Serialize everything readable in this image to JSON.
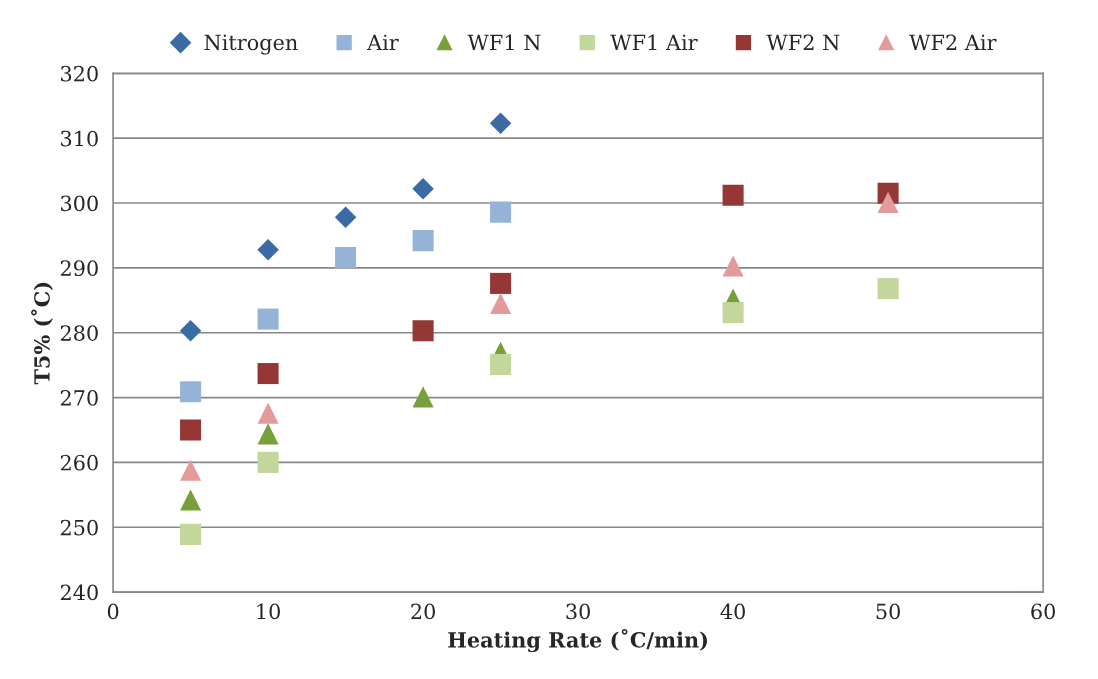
{
  "chart_data": {
    "type": "scatter",
    "xlabel": "Heating Rate (˚C/min)",
    "ylabel": "T5% (˚C)",
    "xlim": [
      0,
      60
    ],
    "xticks": [
      0,
      10,
      20,
      30,
      40,
      50,
      60
    ],
    "ylim": [
      240,
      320
    ],
    "yticks": [
      240,
      250,
      260,
      270,
      280,
      290,
      300,
      310,
      320
    ],
    "grid": "y",
    "legend": "top",
    "series": [
      {
        "name": "Nitrogen",
        "color": "#3a6ba5",
        "marker": "diamond",
        "x": [
          5,
          10,
          15,
          20,
          25
        ],
        "values": [
          280.3,
          292.8,
          297.8,
          302.2,
          312.3
        ]
      },
      {
        "name": "Air",
        "color": "#95b3d7",
        "marker": "square",
        "x": [
          5,
          10,
          15,
          20,
          25
        ],
        "values": [
          270.9,
          282.1,
          291.6,
          294.2,
          298.6
        ]
      },
      {
        "name": "WF1 N",
        "color": "#77a03a",
        "marker": "triangle",
        "x": [
          5,
          10,
          20,
          25,
          40
        ],
        "values": [
          254.2,
          264.4,
          270.1,
          277.0,
          285.2
        ]
      },
      {
        "name": "WF1 Air",
        "color": "#c3d69b",
        "marker": "square",
        "x": [
          5,
          10,
          25,
          40,
          50
        ],
        "values": [
          248.9,
          260.0,
          275.1,
          283.1,
          286.8
        ]
      },
      {
        "name": "WF2 N",
        "color": "#953735",
        "marker": "square",
        "x": [
          5,
          10,
          20,
          25,
          40,
          50
        ],
        "values": [
          265.0,
          273.7,
          280.3,
          287.6,
          301.2,
          301.5
        ]
      },
      {
        "name": "WF2 Air",
        "color": "#e39a9a",
        "marker": "triangle",
        "x": [
          5,
          10,
          25,
          40,
          50
        ],
        "values": [
          258.8,
          267.6,
          284.5,
          290.3,
          300.1
        ]
      }
    ]
  }
}
